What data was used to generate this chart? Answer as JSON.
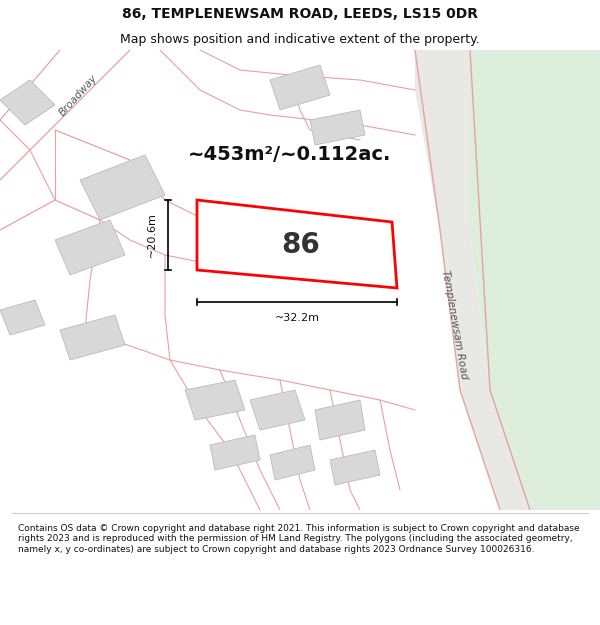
{
  "title": "86, TEMPLENEWSAM ROAD, LEEDS, LS15 0DR",
  "subtitle": "Map shows position and indicative extent of the property.",
  "footer": "Contains OS data © Crown copyright and database right 2021. This information is subject to Crown copyright and database rights 2023 and is reproduced with the permission of HM Land Registry. The polygons (including the associated geometry, namely x, y co-ordinates) are subject to Crown copyright and database rights 2023 Ordnance Survey 100026316.",
  "map_bg": "#ffffff",
  "green_area_color": "#ddeedd",
  "road_line_color": "#e8a0a0",
  "building_fill": "#d8d8d8",
  "building_edge": "#bbbbbb",
  "highlight_fill": "#ffffff",
  "highlight_edge": "#ff0000",
  "highlight_linewidth": 2.0,
  "area_text": "~453m²/~0.112ac.",
  "number_text": "86",
  "dim_width_text": "~32.2m",
  "dim_height_text": "~20.6m",
  "road_label_right": "Templenewsam Road",
  "road_label_diag": "Broadway",
  "title_fontsize": 10,
  "subtitle_fontsize": 9,
  "footer_fontsize": 6.5
}
